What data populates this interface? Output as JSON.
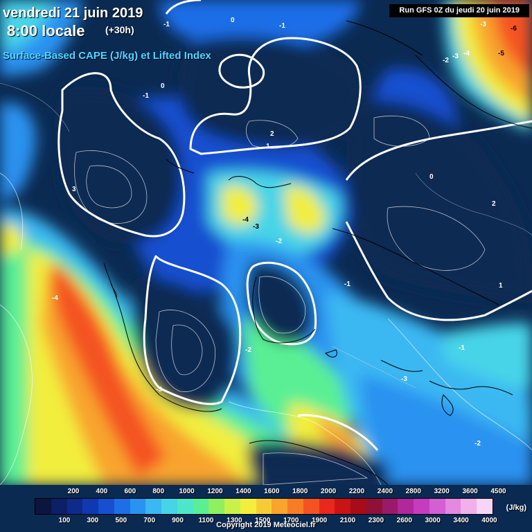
{
  "header": {
    "date": "vendredi 21 juin 2019",
    "time": "8:00 locale",
    "offset": "(+30h)",
    "parameter": "Surface-Based CAPE (J/kg) et Lifted Index",
    "run": "Run GFS 0Z du jeudi 20 juin 2019"
  },
  "legend": {
    "unit": "(J/kg)",
    "top_ticks": [
      "200",
      "400",
      "600",
      "800",
      "1000",
      "1200",
      "1400",
      "1600",
      "1800",
      "2000",
      "2200",
      "2400",
      "2800",
      "3200",
      "3600",
      "4500"
    ],
    "bottom_ticks": [
      "100",
      "300",
      "500",
      "700",
      "900",
      "1100",
      "1300",
      "1500",
      "1700",
      "1900",
      "2100",
      "2300",
      "2600",
      "3000",
      "3400",
      "4000"
    ],
    "colors": [
      "#0a1540",
      "#0d1f66",
      "#0e2a8a",
      "#1038b0",
      "#1650d0",
      "#1e6ee8",
      "#2a92f0",
      "#3ab8f2",
      "#46d4e8",
      "#4ee6c8",
      "#5aef94",
      "#8ef060",
      "#c8f24a",
      "#f2ee3c",
      "#f6cc36",
      "#f8a42e",
      "#f87c28",
      "#f45222",
      "#e8281e",
      "#c81414",
      "#a80c18",
      "#901038",
      "#9a1a6a",
      "#b0289a",
      "#c43cc0",
      "#d45ed4",
      "#e488e0",
      "#f0b0ec",
      "#f8d4f6"
    ]
  },
  "copyright": "Copyright 2019 Meteociel.fr",
  "map": {
    "lifted_index_labels": [
      {
        "text": "-1"
      },
      {
        "text": "0"
      },
      {
        "text": "-1"
      },
      {
        "text": "-3"
      },
      {
        "text": "-6"
      },
      {
        "text": "-5"
      },
      {
        "text": "-3"
      },
      {
        "text": "-4"
      },
      {
        "text": "-2"
      },
      {
        "text": "-1"
      },
      {
        "text": "0"
      },
      {
        "text": "1"
      },
      {
        "text": "2"
      },
      {
        "text": "3"
      },
      {
        "text": "-4"
      },
      {
        "text": "-3"
      },
      {
        "text": "-2"
      },
      {
        "text": "-2"
      },
      {
        "text": "-3"
      },
      {
        "text": "-4"
      },
      {
        "text": "-1"
      },
      {
        "text": "-3"
      },
      {
        "text": "-2"
      },
      {
        "text": "2"
      },
      {
        "text": "0"
      },
      {
        "text": "1"
      },
      {
        "text": "-1"
      }
    ]
  }
}
